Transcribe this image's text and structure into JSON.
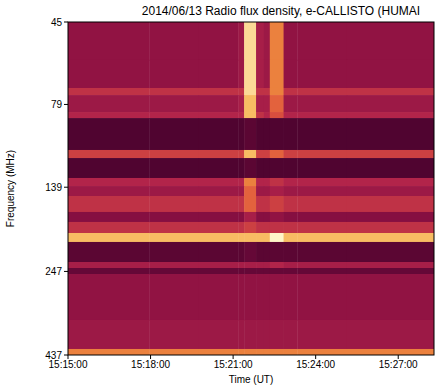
{
  "chart_data": {
    "type": "heatmap",
    "title": "2014/06/13  Radio flux density, e-CALLISTO (HUMAI",
    "x_label": "Time (UT)",
    "y_label": "Frequency (MHz)",
    "log": "y",
    "xlim": [
      54900,
      55698
    ],
    "ylim": [
      45,
      437
    ],
    "xticks": [
      {
        "value": 54900,
        "label": "15:15:00"
      },
      {
        "value": 55080,
        "label": "15:18:00"
      },
      {
        "value": 55260,
        "label": "15:21:00"
      },
      {
        "value": 55440,
        "label": "15:24:00"
      },
      {
        "value": 55620,
        "label": "15:27:00"
      }
    ],
    "yticks": [
      45,
      79,
      139,
      247,
      437
    ],
    "x_bins": [
      54900,
      55077,
      55185,
      55271,
      55284,
      55310,
      55327,
      55340,
      55370,
      55400,
      55508,
      55698
    ],
    "y_bins": [
      45,
      58.3,
      70.6,
      74.1,
      83.2,
      86.7,
      107.8,
      113.9,
      130.5,
      137.9,
      147.6,
      164.6,
      176.2,
      190,
      202,
      231.6,
      241.3,
      251.4,
      344.1,
      419.4,
      437
    ],
    "cells": [
      [
        4,
        4,
        4,
        4.5,
        9.5,
        5,
        4.5,
        8,
        4,
        4,
        4
      ],
      [
        4,
        4,
        4,
        4.5,
        9.5,
        5,
        4.5,
        8,
        4,
        4,
        4
      ],
      [
        6,
        6,
        6,
        6,
        9.5,
        6,
        6,
        8,
        6,
        6,
        6
      ],
      [
        4.5,
        4.5,
        4.5,
        5,
        9,
        5,
        5,
        7.5,
        4.5,
        4.5,
        4.5
      ],
      [
        5.5,
        5.5,
        5.5,
        5.5,
        9,
        6,
        5.5,
        7,
        5.5,
        5.5,
        5.5
      ],
      [
        1,
        1,
        1,
        1,
        1.5,
        1,
        1,
        1,
        1,
        1,
        1
      ],
      [
        6.5,
        6.5,
        6.5,
        6.5,
        9,
        6.5,
        6.5,
        7.5,
        6.5,
        6.5,
        6.5
      ],
      [
        1,
        1,
        1,
        1,
        1.5,
        1,
        1,
        1,
        1,
        1,
        1
      ],
      [
        5.5,
        5.5,
        5.5,
        5.5,
        8,
        5.5,
        5.5,
        6,
        5.5,
        5.5,
        5.5
      ],
      [
        4.5,
        4.5,
        4.5,
        4.5,
        7.5,
        4.5,
        4.5,
        5,
        4.5,
        4.5,
        4.5
      ],
      [
        6,
        6,
        6,
        6,
        7.5,
        6,
        6,
        6.5,
        6,
        6,
        6
      ],
      [
        3.5,
        3.5,
        3.5,
        3.5,
        5,
        3.5,
        3.5,
        4,
        3.5,
        3.5,
        3.5
      ],
      [
        6,
        6,
        6,
        6,
        6.5,
        6,
        6,
        6,
        6,
        6,
        6
      ],
      [
        9,
        9,
        9,
        9,
        9,
        9,
        9,
        10,
        9,
        9,
        9
      ],
      [
        1.5,
        1.5,
        1.5,
        1.5,
        2,
        1.5,
        1.5,
        1.5,
        1.5,
        1.5,
        1.5
      ],
      [
        5,
        5,
        5,
        5,
        5,
        5,
        5,
        5.5,
        5,
        5,
        5
      ],
      [
        2,
        2,
        2,
        2,
        2,
        2,
        2,
        2,
        2,
        2,
        2
      ],
      [
        4,
        4,
        4,
        4,
        4,
        4,
        4,
        4,
        4,
        4,
        4
      ],
      [
        4.5,
        4.5,
        4.5,
        4.5,
        4.5,
        4.5,
        4.5,
        4.5,
        4.5,
        4.5,
        4.5
      ],
      [
        8,
        8,
        8,
        8,
        8,
        8,
        8,
        8,
        8,
        8,
        8
      ]
    ]
  }
}
